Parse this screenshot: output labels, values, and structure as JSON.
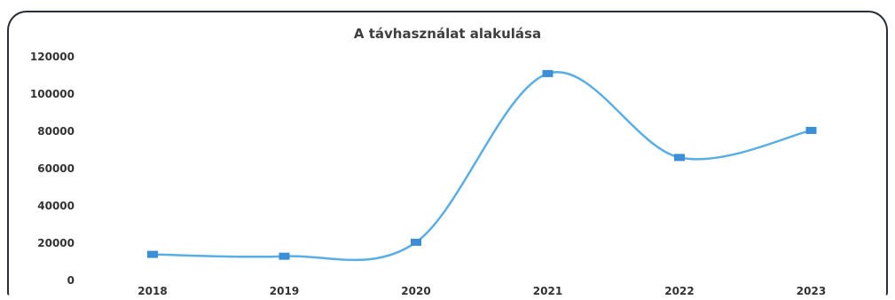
{
  "chart_data": {
    "type": "line",
    "title": "A távhasználat alakulása",
    "xlabel": "",
    "ylabel": "",
    "categories": [
      "2018",
      "2019",
      "2020",
      "2021",
      "2022",
      "2023"
    ],
    "series": [
      {
        "values": [
          14000,
          13000,
          20500,
          111000,
          66000,
          80500
        ]
      }
    ],
    "ylim": [
      0,
      120000
    ],
    "yticks": [
      "0",
      "20000",
      "40000",
      "60000",
      "80000",
      "100000",
      "120000"
    ],
    "smooth": true,
    "markers": "square",
    "grid": false,
    "legend": "none",
    "colors": {
      "line": "#5aaee6",
      "marker": "#3b8fd9"
    }
  }
}
